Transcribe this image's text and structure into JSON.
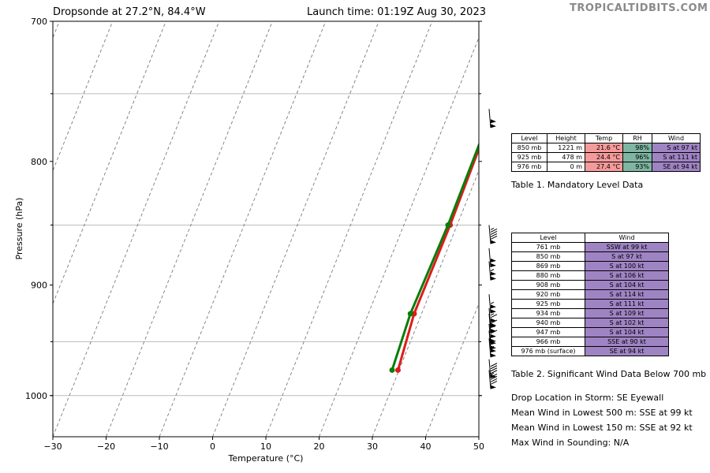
{
  "header": {
    "title_left": "Dropsonde at 27.2°N, 84.4°W",
    "title_right": "Launch time: 01:19Z Aug 30, 2023",
    "watermark": "TROPICALTIDBITS.COM"
  },
  "chart_data": {
    "type": "line",
    "title": "Dropsonde at 27.2°N, 84.4°W",
    "xlabel": "Temperature (°C)",
    "ylabel": "Pressure (hPa)",
    "xlim": [
      -30,
      50
    ],
    "ylim": [
      1040,
      700
    ],
    "y_scale": "log",
    "x_ticks": [
      -30,
      -20,
      -10,
      0,
      10,
      20,
      30,
      40,
      50
    ],
    "x_tick_labels": [
      "−30",
      "−20",
      "−10",
      "0",
      "10",
      "20",
      "30",
      "40",
      "50"
    ],
    "y_ticks": [
      700,
      800,
      900,
      1000
    ],
    "y_tick_labels": [
      "700",
      "800",
      "900",
      "1000"
    ],
    "grid": true,
    "isobar_gridlines": [
      750,
      850,
      950,
      1000
    ],
    "skewed_isotherms": true,
    "series": [
      {
        "role": "temperature",
        "color": "#dd1c1c",
        "pressure": [
          761,
          850,
          925,
          976
        ],
        "temp_c": [
          28.2,
          28.7,
          28.6,
          29.8
        ]
      },
      {
        "role": "dewpoint",
        "color": "#0a7d0a",
        "pressure": [
          761,
          850,
          925,
          976
        ],
        "temp_c": [
          28.0,
          28.3,
          27.9,
          28.7
        ]
      }
    ],
    "wind_barbs": {
      "pressure": [
        761,
        850,
        869,
        880,
        908,
        920,
        925,
        934,
        940,
        947,
        966,
        976
      ],
      "speed_kt": [
        99,
        97,
        100,
        106,
        104,
        114,
        111,
        109,
        102,
        104,
        90,
        94
      ]
    }
  },
  "table1": {
    "caption": "Table 1. Mandatory Level Data",
    "headers": [
      "Level",
      "Height",
      "Temp",
      "RH",
      "Wind"
    ],
    "rows": [
      [
        "850 mb",
        "1221 m",
        "21.6 °C",
        "98%",
        "S at 97 kt"
      ],
      [
        "925 mb",
        "478 m",
        "24.4 °C",
        "96%",
        "S at 111 kt"
      ],
      [
        "976 mb",
        "0 m",
        "27.4 °C",
        "93%",
        "SE at 94 kt"
      ]
    ],
    "colors": {
      "temp": "#f59a9a",
      "rh": "#7fb5a3",
      "wind": "#9f84c4"
    }
  },
  "table2": {
    "caption": "Table 2. Significant Wind Data Below 700 mb",
    "headers": [
      "Level",
      "Wind"
    ],
    "rows": [
      [
        "761 mb",
        "SSW at 99 kt"
      ],
      [
        "850 mb",
        "S at 97 kt"
      ],
      [
        "869 mb",
        "S at 100 kt"
      ],
      [
        "880 mb",
        "S at 106 kt"
      ],
      [
        "908 mb",
        "S at 104 kt"
      ],
      [
        "920 mb",
        "S at 114 kt"
      ],
      [
        "925 mb",
        "S at 111 kt"
      ],
      [
        "934 mb",
        "S at 109 kt"
      ],
      [
        "940 mb",
        "S at 102 kt"
      ],
      [
        "947 mb",
        "S at 104 kt"
      ],
      [
        "966 mb",
        "SSE at 90 kt"
      ],
      [
        "976 mb (surface)",
        "SE at 94 kt"
      ]
    ]
  },
  "info": {
    "line1": "Drop Location in Storm: SE Eyewall",
    "line2": "Mean Wind in Lowest 500 m:  SSE at 99 kt",
    "line3": "Mean Wind in Lowest 150 m:  SSE at 92 kt",
    "line4": "Max Wind in Sounding:  N/A"
  }
}
